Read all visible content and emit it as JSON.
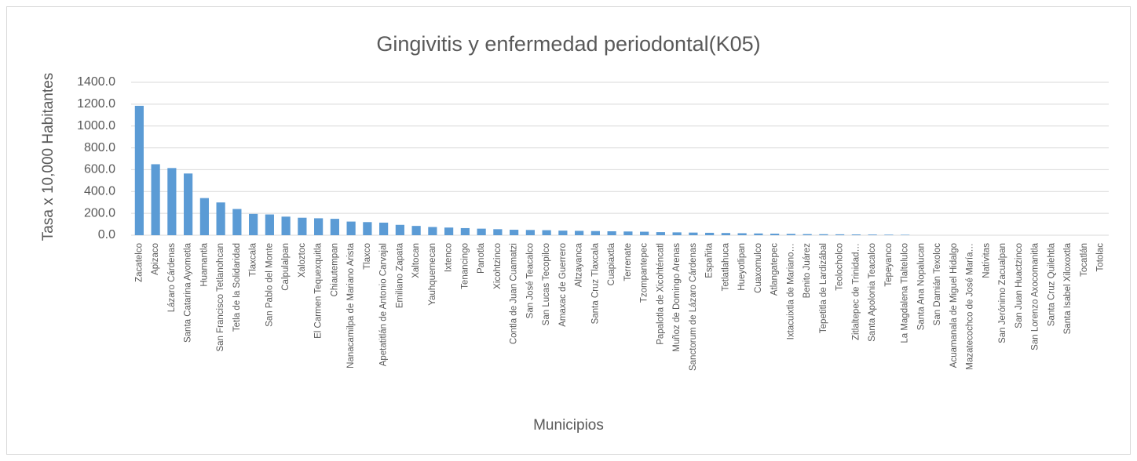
{
  "chart_data": {
    "type": "bar",
    "title": "Gingivitis y enfermedad periodontal(K05)",
    "x_label": "Municipios",
    "y_label": "Tasa x 10,000 Habitantes",
    "color": "#5b9bd5",
    "grid": true,
    "ylim": [
      0,
      1400
    ],
    "yticks": [
      {
        "value": 0,
        "label": "0.0"
      },
      {
        "value": 200,
        "label": "200.0"
      },
      {
        "value": 400,
        "label": "400.0"
      },
      {
        "value": 600,
        "label": "600.0"
      },
      {
        "value": 800,
        "label": "800.0"
      },
      {
        "value": 1000,
        "label": "1000.0"
      },
      {
        "value": 1200,
        "label": "1200.0"
      },
      {
        "value": 1400,
        "label": "1400.0"
      }
    ],
    "categories": [
      "Zacatelco",
      "Apizaco",
      "Lázaro Cárdenas",
      "Santa Catarina Ayometla",
      "Huamantla",
      "San Francisco Tetlanohcan",
      "Tetla de la Solidaridad",
      "Tlaxcala",
      "San Pablo del Monte",
      "Calpulalpan",
      "Xaloztoc",
      "El Carmen Tequexquitla",
      "Chiautempan",
      "Nanacamilpa de Mariano Arista",
      "Tlaxco",
      "Apetatitlán de Antonio Carvajal",
      "Emiliano Zapata",
      "Xaltocan",
      "Yauhquemecan",
      "Ixtenco",
      "Tenancingo",
      "Panotla",
      "Xicohtzinco",
      "Contla de Juan Cuamatzi",
      "San José Teacalco",
      "San Lucas Tecopilco",
      "Amaxac de Guerrero",
      "Altzayanca",
      "Santa Cruz Tlaxcala",
      "Cuapiaxtla",
      "Terrenate",
      "Tzompantepec",
      "Papalotla de Xicohténcatl",
      "Muñoz de Domingo Arenas",
      "Sanctorum de Lázaro Cárdenas",
      "Españita",
      "Tetlatlahuca",
      "Hueyotlipan",
      "Cuaxomulco",
      "Atlangatepec",
      "Ixtacuixtla de Mariano…",
      "Benito Juárez",
      "Tepetitla de Lardizábal",
      "Teolocholco",
      "Zitlaltepec de Trinidad…",
      "Santa Apolonia Teacalco",
      "Tepeyanco",
      "La Magdalena Tlaltelulco",
      "Santa Ana Nopalucan",
      "San Damián Texoloc",
      "Acuamanala de Miguel Hidalgo",
      "Mazatecochco de José María…",
      "Natívitas",
      "San Jerónimo Zacualpan",
      "San Juan Huactzinco",
      "San Lorenzo Axocomanitla",
      "Santa Cruz Quilehtla",
      "Santa Isabel Xiloxoxtla",
      "Tocatlán",
      "Totolac"
    ],
    "values": [
      1185,
      650,
      615,
      565,
      340,
      300,
      240,
      195,
      190,
      170,
      160,
      155,
      150,
      125,
      120,
      115,
      95,
      85,
      75,
      70,
      65,
      60,
      55,
      50,
      48,
      46,
      42,
      40,
      38,
      36,
      34,
      32,
      28,
      26,
      24,
      22,
      20,
      18,
      16,
      14,
      12,
      10,
      9,
      8,
      7,
      6,
      5,
      4,
      0,
      0,
      0,
      0,
      0,
      0,
      0,
      0,
      0,
      0,
      0,
      0
    ]
  }
}
